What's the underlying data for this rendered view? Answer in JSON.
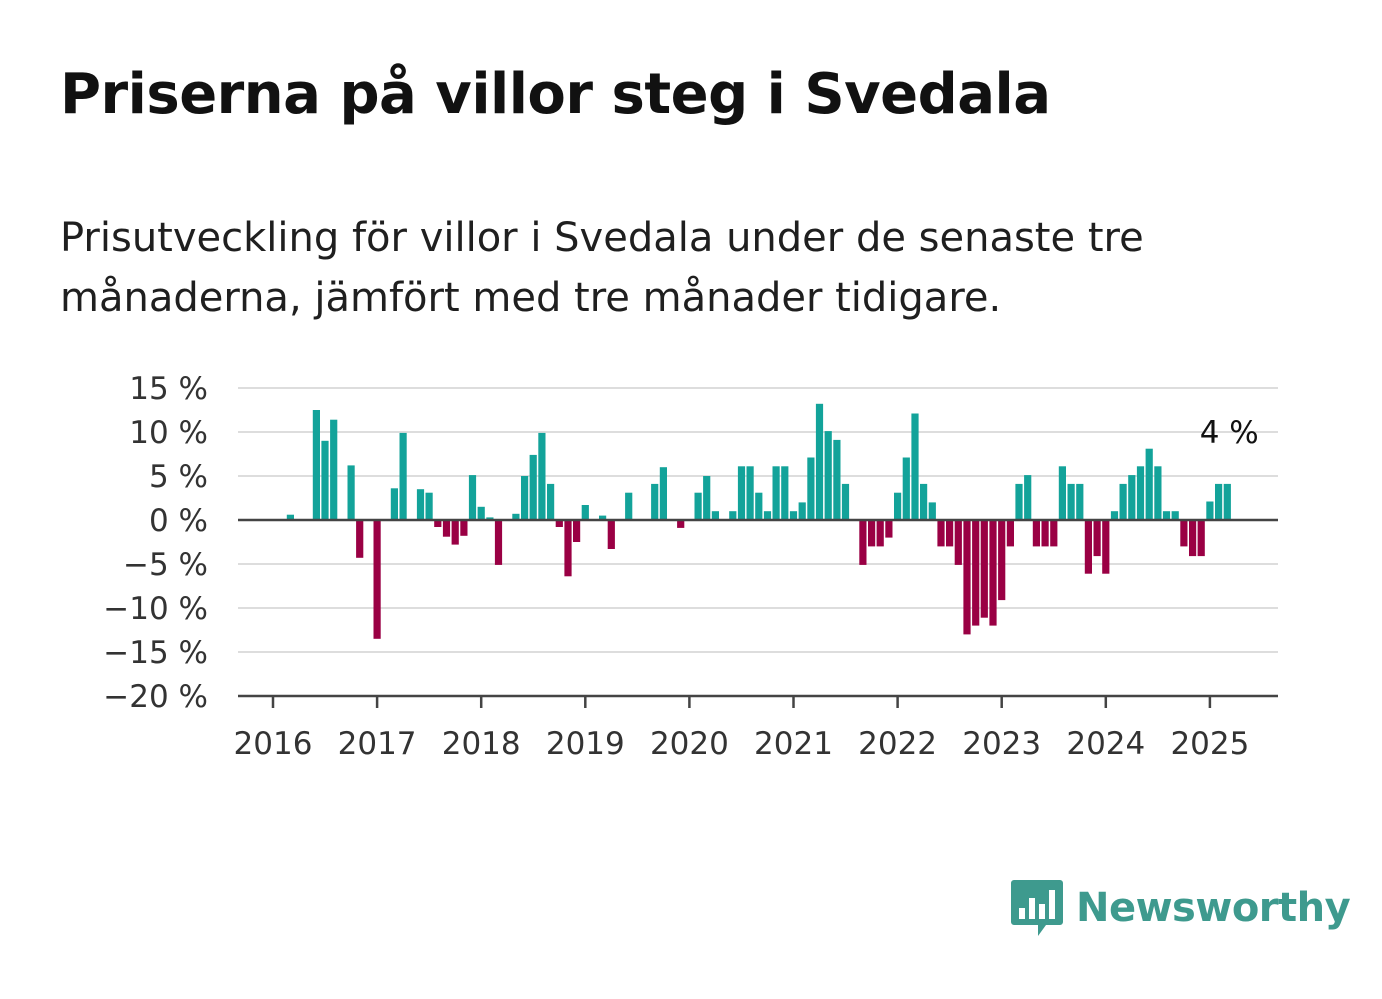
{
  "title": "Priserna på villor steg i Svedala",
  "subtitle": "Prisutveckling för villor i Svedala under de senaste tre månaderna, jämfört med tre månader tidigare.",
  "brand": {
    "name": "Newsworthy",
    "icon": "bar-chart-speech-bubble-icon",
    "color": "#3e9a8e"
  },
  "colors": {
    "positive": "#13a39a",
    "negative": "#9a0044",
    "grid": "#dddddd",
    "zero": "#444444"
  },
  "chart_data": {
    "type": "bar",
    "ylim": [
      -20,
      15
    ],
    "y_ticks": [
      15,
      10,
      5,
      0,
      -5,
      -10,
      -15,
      -20
    ],
    "y_tick_labels": [
      "15 %",
      "10 %",
      "5 %",
      "0 %",
      "−5 %",
      "−10 %",
      "−15 %",
      "−20 %"
    ],
    "x_ticks": [
      "2016",
      "2017",
      "2018",
      "2019",
      "2020",
      "2021",
      "2022",
      "2023",
      "2024",
      "2025"
    ],
    "grid": "horizontal",
    "annotation": {
      "text": "4 %",
      "x": "2025-03",
      "y": 4
    },
    "x": [
      "2016-01",
      "2016-02",
      "2016-03",
      "2016-04",
      "2016-05",
      "2016-06",
      "2016-07",
      "2016-08",
      "2016-09",
      "2016-10",
      "2016-11",
      "2016-12",
      "2017-01",
      "2017-02",
      "2017-03",
      "2017-04",
      "2017-05",
      "2017-06",
      "2017-07",
      "2017-08",
      "2017-09",
      "2017-10",
      "2017-11",
      "2017-12",
      "2018-01",
      "2018-02",
      "2018-03",
      "2018-04",
      "2018-05",
      "2018-06",
      "2018-07",
      "2018-08",
      "2018-09",
      "2018-10",
      "2018-11",
      "2018-12",
      "2019-01",
      "2019-02",
      "2019-03",
      "2019-04",
      "2019-05",
      "2019-06",
      "2019-07",
      "2019-08",
      "2019-09",
      "2019-10",
      "2019-11",
      "2019-12",
      "2020-01",
      "2020-02",
      "2020-03",
      "2020-04",
      "2020-05",
      "2020-06",
      "2020-07",
      "2020-08",
      "2020-09",
      "2020-10",
      "2020-11",
      "2020-12",
      "2021-01",
      "2021-02",
      "2021-03",
      "2021-04",
      "2021-05",
      "2021-06",
      "2021-07",
      "2021-08",
      "2021-09",
      "2021-10",
      "2021-11",
      "2021-12",
      "2022-01",
      "2022-02",
      "2022-03",
      "2022-04",
      "2022-05",
      "2022-06",
      "2022-07",
      "2022-08",
      "2022-09",
      "2022-10",
      "2022-11",
      "2022-12",
      "2023-01",
      "2023-02",
      "2023-03",
      "2023-04",
      "2023-05",
      "2023-06",
      "2023-07",
      "2023-08",
      "2023-09",
      "2023-10",
      "2023-11",
      "2023-12",
      "2024-01",
      "2024-02",
      "2024-03",
      "2024-04",
      "2024-05",
      "2024-06",
      "2024-07",
      "2024-08",
      "2024-09",
      "2024-10",
      "2024-11",
      "2024-12",
      "2025-01",
      "2025-02",
      "2025-03"
    ],
    "values": [
      0,
      0,
      0.6,
      0,
      0,
      12.5,
      9,
      11.4,
      0,
      6.2,
      -4.3,
      0,
      -13.5,
      0,
      3.6,
      9.9,
      0,
      3.5,
      3.1,
      -0.8,
      -1.9,
      -2.8,
      -1.8,
      5.1,
      1.5,
      0.3,
      -5.1,
      0,
      0.7,
      5,
      7.4,
      9.9,
      4.1,
      -0.8,
      -6.4,
      -2.5,
      1.7,
      0,
      0.5,
      -3.3,
      0,
      3.1,
      0,
      0,
      4.1,
      6,
      0,
      -0.9,
      0,
      3.1,
      5,
      1,
      0,
      1,
      6.1,
      6.1,
      3.1,
      1,
      6.1,
      6.1,
      1,
      2,
      7.1,
      13.2,
      10.1,
      9.1,
      4.1,
      0,
      -5.1,
      -3,
      -3,
      -2,
      3.1,
      7.1,
      12.1,
      4.1,
      2,
      -3,
      -3,
      -5.1,
      -13,
      -12,
      -11.1,
      -12,
      -9.1,
      -3,
      4.1,
      5.1,
      -3,
      -3,
      -3,
      6.1,
      4.1,
      4.1,
      -6.1,
      -4.1,
      -6.1,
      1,
      4.1,
      5.1,
      6.1,
      8.1,
      6.1,
      1,
      1,
      -3,
      -4.1,
      -4.1,
      2.1,
      4.1,
      4.1
    ]
  }
}
